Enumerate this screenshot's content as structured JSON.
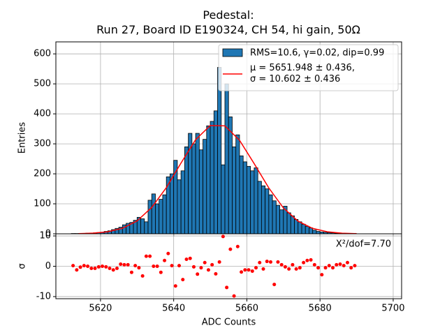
{
  "chart_data": [
    {
      "type": "histogram",
      "title": "Pedestal:\nRun 27, Board ID E190324, CH 54, hi gain, 50Ω",
      "ylabel": "Entries",
      "xlim": [
        5607.8,
        5702.3
      ],
      "ylim": [
        0,
        640
      ],
      "yticks": [
        0,
        100,
        200,
        300,
        400,
        500,
        600
      ],
      "xticks": [
        5620,
        5640,
        5660,
        5680,
        5700
      ],
      "grid": true,
      "legend": "upper right",
      "series": [
        {
          "name": "RMS=10.6, γ=0.02, dip=0.99",
          "color": "#1f77b4",
          "bins": [
            5612,
            5613,
            5614,
            5615,
            5616,
            5617,
            5618,
            5619,
            5620,
            5621,
            5622,
            5623,
            5624,
            5625,
            5626,
            5627,
            5628,
            5629,
            5630,
            5631,
            5632,
            5633,
            5634,
            5635,
            5636,
            5637,
            5638,
            5639,
            5640,
            5641,
            5642,
            5643,
            5644,
            5645,
            5646,
            5647,
            5648,
            5649,
            5650,
            5651,
            5652,
            5653,
            5654,
            5655,
            5656,
            5657,
            5658,
            5659,
            5660,
            5661,
            5662,
            5663,
            5664,
            5665,
            5666,
            5667,
            5668,
            5669,
            5670,
            5671,
            5672,
            5673,
            5674,
            5675,
            5676,
            5677,
            5678,
            5679,
            5680,
            5681,
            5682,
            5683,
            5684,
            5685,
            5686,
            5687,
            5688,
            5689,
            5690
          ],
          "values": [
            1,
            1,
            1,
            1,
            2,
            2,
            3,
            4,
            5,
            8,
            10,
            14,
            18,
            22,
            30,
            35,
            38,
            45,
            55,
            50,
            40,
            112,
            133,
            100,
            115,
            130,
            190,
            200,
            245,
            180,
            210,
            290,
            335,
            300,
            335,
            280,
            315,
            360,
            375,
            410,
            555,
            230,
            500,
            390,
            290,
            330,
            260,
            240,
            225,
            210,
            220,
            175,
            160,
            150,
            130,
            110,
            95,
            80,
            92,
            70,
            60,
            48,
            40,
            32,
            25,
            20,
            12,
            8,
            6,
            5,
            4,
            3,
            2,
            2,
            1,
            1,
            1,
            0
          ]
        },
        {
          "name": "μ = 5651.948 ± 0.436,\nσ = 10.602 ± 0.436",
          "color": "#ff0000",
          "x": [
            5614,
            5618,
            5622,
            5626,
            5630,
            5634,
            5638,
            5642,
            5646,
            5650,
            5654,
            5658,
            5662,
            5666,
            5670,
            5674,
            5678,
            5682,
            5686,
            5690
          ],
          "values": [
            0.6,
            2.2,
            6.8,
            18.4,
            43,
            88,
            154,
            236,
            314,
            361,
            360,
            312,
            234,
            153,
            86,
            42,
            18,
            6.6,
            2.1,
            0.6
          ]
        }
      ]
    },
    {
      "type": "scatter",
      "xlabel": "ADC Counts",
      "ylabel": "σ",
      "annotation": "X²/dof=7.70",
      "color": "#ff0000",
      "xlim": [
        5607.8,
        5702.3
      ],
      "ylim": [
        -10.7,
        10.7
      ],
      "yticks": [
        -10,
        0,
        10
      ],
      "xticks": [
        5620,
        5640,
        5660,
        5680,
        5700
      ],
      "grid": true,
      "x": [
        5612.5,
        5613.5,
        5614.5,
        5615.5,
        5616.5,
        5617.5,
        5618.5,
        5619.5,
        5620.5,
        5621.5,
        5622.5,
        5623.5,
        5624.5,
        5625.5,
        5626.5,
        5627.5,
        5628.5,
        5629.5,
        5630.5,
        5631.5,
        5632.5,
        5633.5,
        5634.5,
        5635.5,
        5636.5,
        5637.5,
        5638.5,
        5639.5,
        5640.5,
        5641.5,
        5642.5,
        5643.5,
        5644.5,
        5645.5,
        5646.5,
        5647.5,
        5648.5,
        5649.5,
        5650.5,
        5651.5,
        5652.5,
        5653.5,
        5654.5,
        5655.5,
        5656.5,
        5657.5,
        5658.5,
        5659.5,
        5660.5,
        5661.5,
        5662.5,
        5663.5,
        5664.5,
        5665.5,
        5666.5,
        5667.5,
        5668.5,
        5669.5,
        5670.5,
        5671.5,
        5672.5,
        5673.5,
        5674.5,
        5675.5,
        5676.5,
        5677.5,
        5678.5,
        5679.5,
        5680.5,
        5681.5,
        5682.5,
        5683.5,
        5684.5,
        5685.5,
        5686.5,
        5687.5,
        5688.5,
        5689.5
      ],
      "values": [
        0.2,
        -1.2,
        -0.3,
        0.2,
        0,
        -0.7,
        -0.7,
        -0.2,
        0,
        -0.2,
        -0.7,
        -1.2,
        -0.7,
        0.7,
        0.5,
        0.5,
        -2,
        0.2,
        -0.5,
        -3.2,
        3.3,
        3.3,
        0,
        0,
        -2,
        1.9,
        4.2,
        0.2,
        -6.5,
        0.2,
        -4.4,
        2.3,
        2.6,
        -0.2,
        -2.6,
        -0.5,
        1.2,
        -1.2,
        0.5,
        -2.5,
        1.4,
        9.8,
        -7,
        5.6,
        -9.8,
        6.5,
        -1.9,
        -1.2,
        -1.2,
        -1.6,
        -0.5,
        1.2,
        -0.9,
        1.6,
        1.4,
        -6,
        1.4,
        0.5,
        -0.2,
        -0.9,
        0.5,
        -0.9,
        -0.5,
        1.2,
        1.9,
        2.1,
        0.5,
        -0.5,
        -2.8,
        -0.5,
        0.2,
        -0.5,
        0.5,
        0.7,
        0.2,
        1.2,
        -0.5,
        0.2
      ]
    }
  ]
}
